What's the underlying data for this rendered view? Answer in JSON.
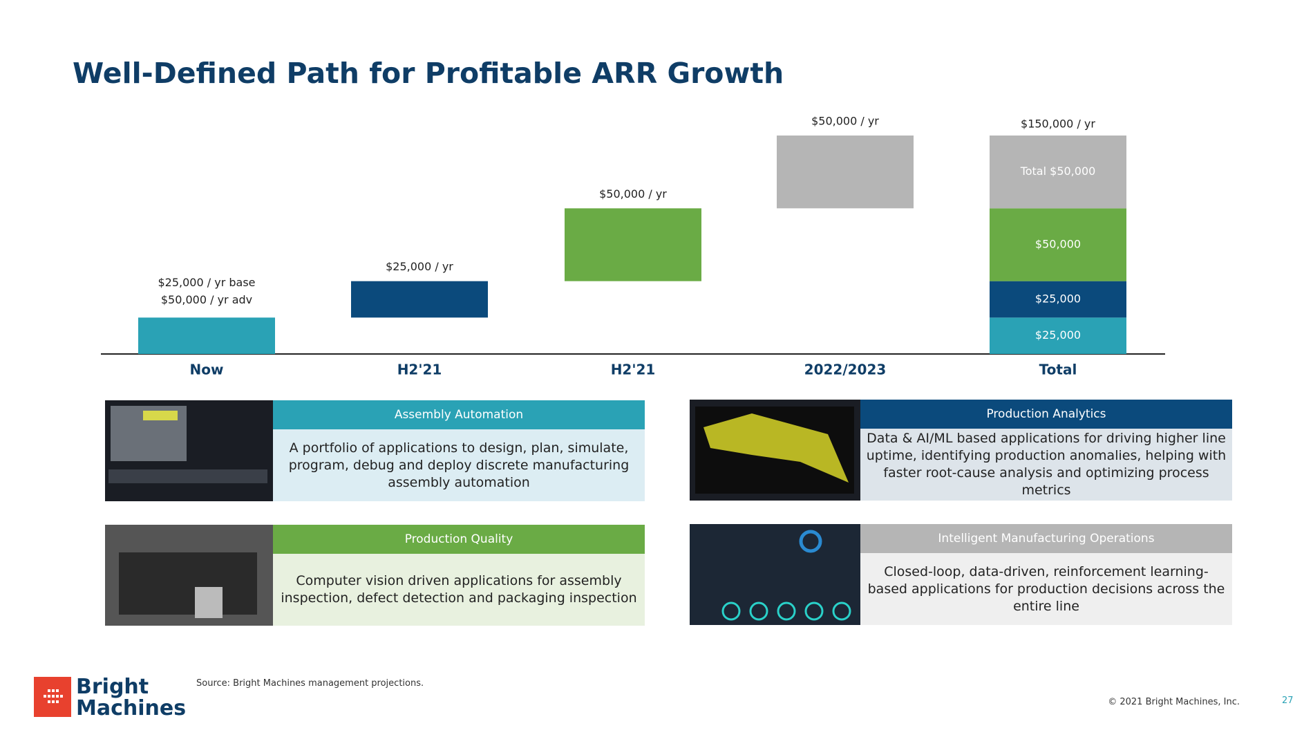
{
  "title": "Well-Defined Path for Profitable ARR Growth",
  "chart_data": {
    "type": "waterfall",
    "categories": [
      "Now",
      "H2'21",
      "H2'21",
      "2022/2023"
    ],
    "values": [
      25000,
      25000,
      50000,
      50000
    ],
    "colors": [
      "#2aa2b5",
      "#0b4a7c",
      "#6aab45",
      "#b5b5b5"
    ],
    "value_labels": [
      "$25,000 / yr base",
      "$25,000 / yr",
      "$50,000 / yr",
      "$50,000 / yr"
    ],
    "annotation": "$50,000 / yr adv",
    "total": {
      "category": "Total",
      "value": 150000,
      "value_label": "$150,000 / yr",
      "segment_labels": [
        "$25,000",
        "$25,000",
        "$50,000",
        "Total $50,000"
      ]
    },
    "ylim": [
      0,
      150000
    ]
  },
  "cards": [
    {
      "title": "Assembly Automation",
      "color": "#2aa2b5",
      "bg": "#dcedf3",
      "lines": [
        "A portfolio of applications to design, plan, simulate,",
        "program, debug and deploy discrete manufacturing",
        "assembly automation"
      ]
    },
    {
      "title": "Production Quality",
      "color": "#6aab45",
      "bg": "#e8f1df",
      "lines": [
        "Computer vision driven applications for assembly",
        "inspection, defect detection and packaging inspection"
      ]
    },
    {
      "title": "Production Analytics",
      "color": "#0b4a7c",
      "bg": "#dde4ea",
      "lines": [
        "Data & AI/ML based applications for driving higher line",
        "uptime, identifying production anomalies, helping with",
        "faster root-cause analysis and optimizing process metrics"
      ]
    },
    {
      "title": "Intelligent Manufacturing Operations",
      "color": "#b5b5b5",
      "bg": "#efefef",
      "lines": [
        "Closed-loop, data-driven, reinforcement learning-",
        "based applications for production decisions across the",
        "entire line"
      ]
    }
  ],
  "source": "Source: Bright Machines management projections.",
  "logo": [
    "Bright",
    "Machines"
  ],
  "copyright": "© 2021 Bright Machines, Inc.",
  "page_number": "27"
}
